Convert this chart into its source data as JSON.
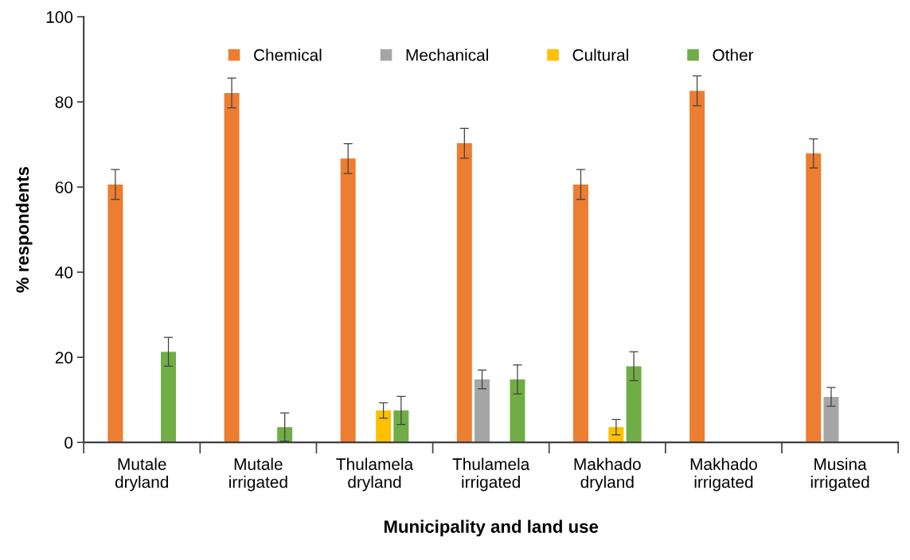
{
  "chart_data": {
    "type": "bar",
    "xlabel": "Municipality and land use",
    "ylabel": "% respondents",
    "categories": [
      "Mutale\ndryland",
      "Mutale\nirrigated",
      "Thulamela\ndryland",
      "Thulamela\nirrigated",
      "Makhado\ndryland",
      "Makhado\nirrigated",
      "Musina\nirrigated"
    ],
    "series": [
      {
        "name": "Chemical",
        "color": "#ed7d31",
        "values": [
          60.6,
          82.1,
          66.7,
          70.3,
          60.6,
          82.6,
          67.9
        ],
        "errors": [
          3.5,
          3.5,
          3.5,
          3.5,
          3.5,
          3.5,
          3.4
        ]
      },
      {
        "name": "Mechanical",
        "color": "#a5a5a5",
        "values": [
          null,
          null,
          null,
          14.8,
          null,
          null,
          10.7
        ],
        "errors": [
          null,
          null,
          null,
          2.2,
          null,
          null,
          2.2
        ]
      },
      {
        "name": "Cultural",
        "color": "#ffc000",
        "values": [
          null,
          null,
          7.5,
          null,
          3.6,
          null,
          null
        ],
        "errors": [
          null,
          null,
          1.8,
          null,
          1.8,
          null,
          null
        ]
      },
      {
        "name": "Other",
        "color": "#70ad47",
        "values": [
          21.3,
          3.6,
          7.5,
          14.8,
          17.9,
          null,
          null
        ],
        "errors": [
          3.4,
          3.3,
          3.3,
          3.4,
          3.4,
          null,
          null
        ]
      }
    ],
    "ylim": [
      0,
      100
    ],
    "yticks": [
      0,
      20,
      40,
      60,
      80,
      100
    ],
    "grid": false,
    "legend": "top"
  }
}
